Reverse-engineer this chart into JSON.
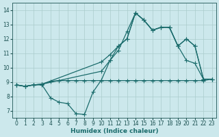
{
  "bg_color": "#cce8ec",
  "grid_color": "#aacccc",
  "line_color": "#1a6b6b",
  "xlabel": "Humidex (Indice chaleur)",
  "xlim": [
    -0.5,
    23.5
  ],
  "ylim": [
    6.5,
    14.5
  ],
  "xticks": [
    0,
    1,
    2,
    3,
    4,
    5,
    6,
    7,
    8,
    9,
    10,
    11,
    12,
    13,
    14,
    15,
    16,
    17,
    18,
    19,
    20,
    21,
    22,
    23
  ],
  "yticks": [
    7,
    8,
    9,
    10,
    11,
    12,
    13,
    14
  ],
  "series": [
    {
      "x": [
        0,
        1,
        2,
        3,
        4,
        5,
        6,
        7,
        8,
        9,
        10,
        11,
        12,
        13,
        14,
        15,
        16,
        17,
        18,
        19,
        20,
        21,
        22,
        23
      ],
      "y": [
        8.8,
        8.7,
        8.8,
        8.85,
        9.05,
        9.1,
        9.1,
        9.1,
        9.1,
        9.1,
        9.1,
        9.1,
        9.1,
        9.1,
        9.1,
        9.1,
        9.1,
        9.1,
        9.1,
        9.1,
        9.1,
        9.1,
        9.1,
        9.2
      ]
    },
    {
      "x": [
        0,
        1,
        2,
        3,
        10,
        11,
        12,
        13,
        14,
        15,
        16,
        17,
        18,
        19,
        20,
        21,
        22,
        23
      ],
      "y": [
        8.8,
        8.7,
        8.8,
        8.85,
        10.4,
        10.9,
        11.5,
        12.0,
        13.8,
        13.3,
        12.6,
        12.8,
        12.8,
        11.5,
        12.0,
        11.5,
        9.2,
        9.2
      ]
    },
    {
      "x": [
        0,
        1,
        2,
        3,
        10,
        11,
        12,
        13,
        14,
        15,
        16,
        17,
        18,
        19,
        20,
        21,
        22,
        23
      ],
      "y": [
        8.8,
        8.7,
        8.8,
        8.85,
        9.75,
        10.5,
        11.2,
        12.5,
        13.8,
        13.3,
        12.6,
        12.8,
        12.8,
        11.5,
        12.0,
        11.5,
        9.2,
        9.2
      ]
    },
    {
      "x": [
        0,
        1,
        2,
        3,
        4,
        5,
        6,
        7,
        8,
        9,
        10,
        11,
        12,
        13,
        14,
        15,
        16,
        17,
        18,
        19,
        20,
        21,
        22
      ],
      "y": [
        8.8,
        8.7,
        8.8,
        8.8,
        7.9,
        7.6,
        7.5,
        6.8,
        6.75,
        8.3,
        9.15,
        10.5,
        11.5,
        12.0,
        13.8,
        13.3,
        12.6,
        12.8,
        12.8,
        11.5,
        10.5,
        10.3,
        9.2
      ]
    }
  ]
}
